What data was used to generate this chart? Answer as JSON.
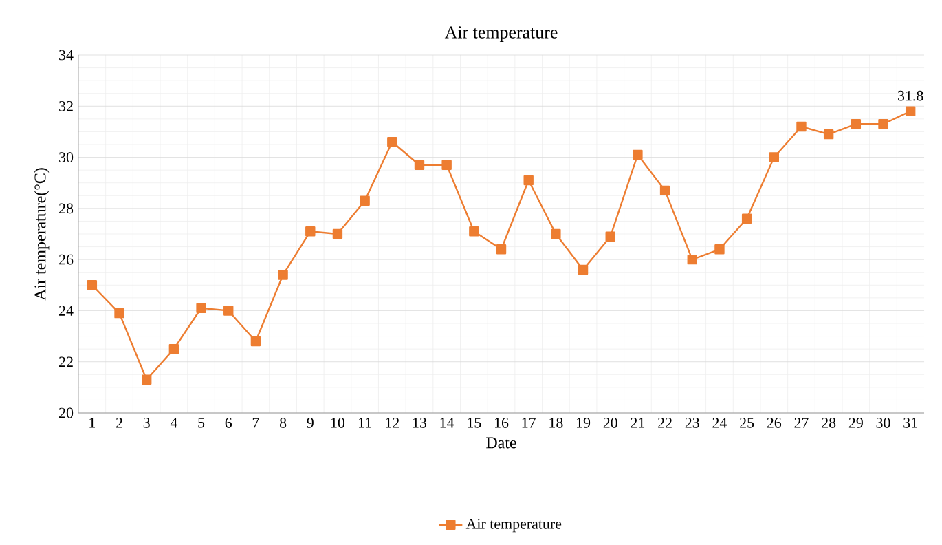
{
  "chart_data": {
    "type": "line",
    "title": "Air temperature",
    "xlabel": "Date",
    "ylabel": "Air temperature(°C)",
    "categories": [
      "1",
      "2",
      "3",
      "4",
      "5",
      "6",
      "7",
      "8",
      "9",
      "10",
      "11",
      "12",
      "13",
      "14",
      "15",
      "16",
      "17",
      "18",
      "19",
      "20",
      "21",
      "22",
      "23",
      "24",
      "25",
      "26",
      "27",
      "28",
      "29",
      "30",
      "31"
    ],
    "series": [
      {
        "name": "Air temperature",
        "color": "#ed7d31",
        "values": [
          25.0,
          23.9,
          21.3,
          22.5,
          24.1,
          24.0,
          22.8,
          25.4,
          27.1,
          27.0,
          28.3,
          30.6,
          29.7,
          29.7,
          27.1,
          26.4,
          29.1,
          27.0,
          25.6,
          26.9,
          30.1,
          28.7,
          26.0,
          26.4,
          27.6,
          30.0,
          31.2,
          30.9,
          31.3,
          31.3,
          31.8
        ]
      }
    ],
    "ylim": [
      20,
      34
    ],
    "yticks": [
      20,
      22,
      24,
      26,
      28,
      30,
      32,
      34
    ],
    "grid": true,
    "legend": "bottom",
    "marker": "square",
    "annotations": [
      {
        "text": "31.8",
        "x": "31",
        "y": 31.8
      }
    ]
  }
}
